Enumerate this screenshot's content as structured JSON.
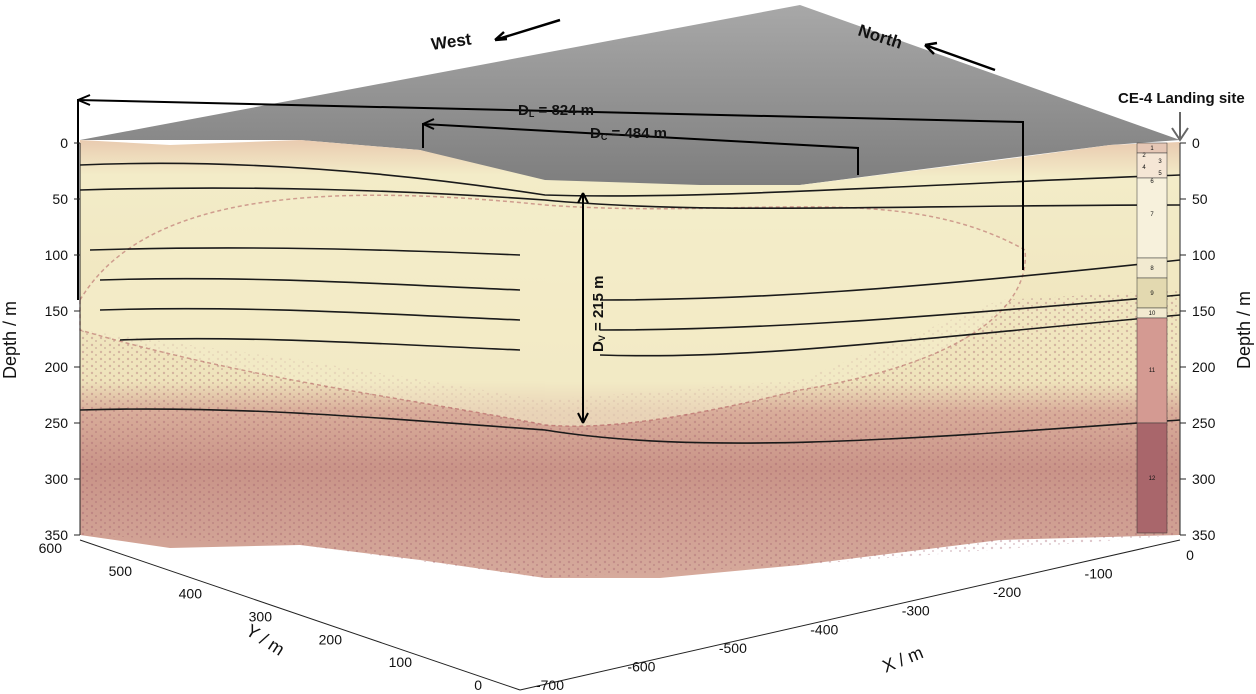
{
  "directions": {
    "west": "West",
    "north": "North"
  },
  "landing_site": "CE-4 Landing site",
  "annotations": {
    "dl": {
      "symbol": "D",
      "sub": "L",
      "text": " = 824 m"
    },
    "dc": {
      "symbol": "D",
      "sub": "C",
      "text": " = 484 m"
    },
    "dv": {
      "symbol": "D",
      "sub": "V",
      "text": " = 215 m"
    }
  },
  "depth_axis": {
    "label": "Depth / m",
    "ticks": [
      "0",
      "50",
      "100",
      "150",
      "200",
      "250",
      "300",
      "350"
    ]
  },
  "y_axis": {
    "label": "Y / m",
    "ticks": [
      "600",
      "500",
      "400",
      "300",
      "200",
      "100",
      "0"
    ]
  },
  "x_axis": {
    "label": "X / m",
    "ticks": [
      "-700",
      "-600",
      "-500",
      "-400",
      "-300",
      "-200",
      "-100",
      "0"
    ]
  },
  "column_units": [
    "1",
    "2",
    "3",
    "4",
    "5",
    "6",
    "7",
    "8",
    "9",
    "10",
    "11",
    "12"
  ],
  "colors": {
    "surface": "#8f8f8f",
    "upper_unit": "#f2ecc4",
    "lower_unit": "#c99a8f",
    "deep_unit": "#b07a78",
    "column_top": "#f7f1dc",
    "column_11": "#d49a92",
    "column_12": "#a9666b"
  }
}
